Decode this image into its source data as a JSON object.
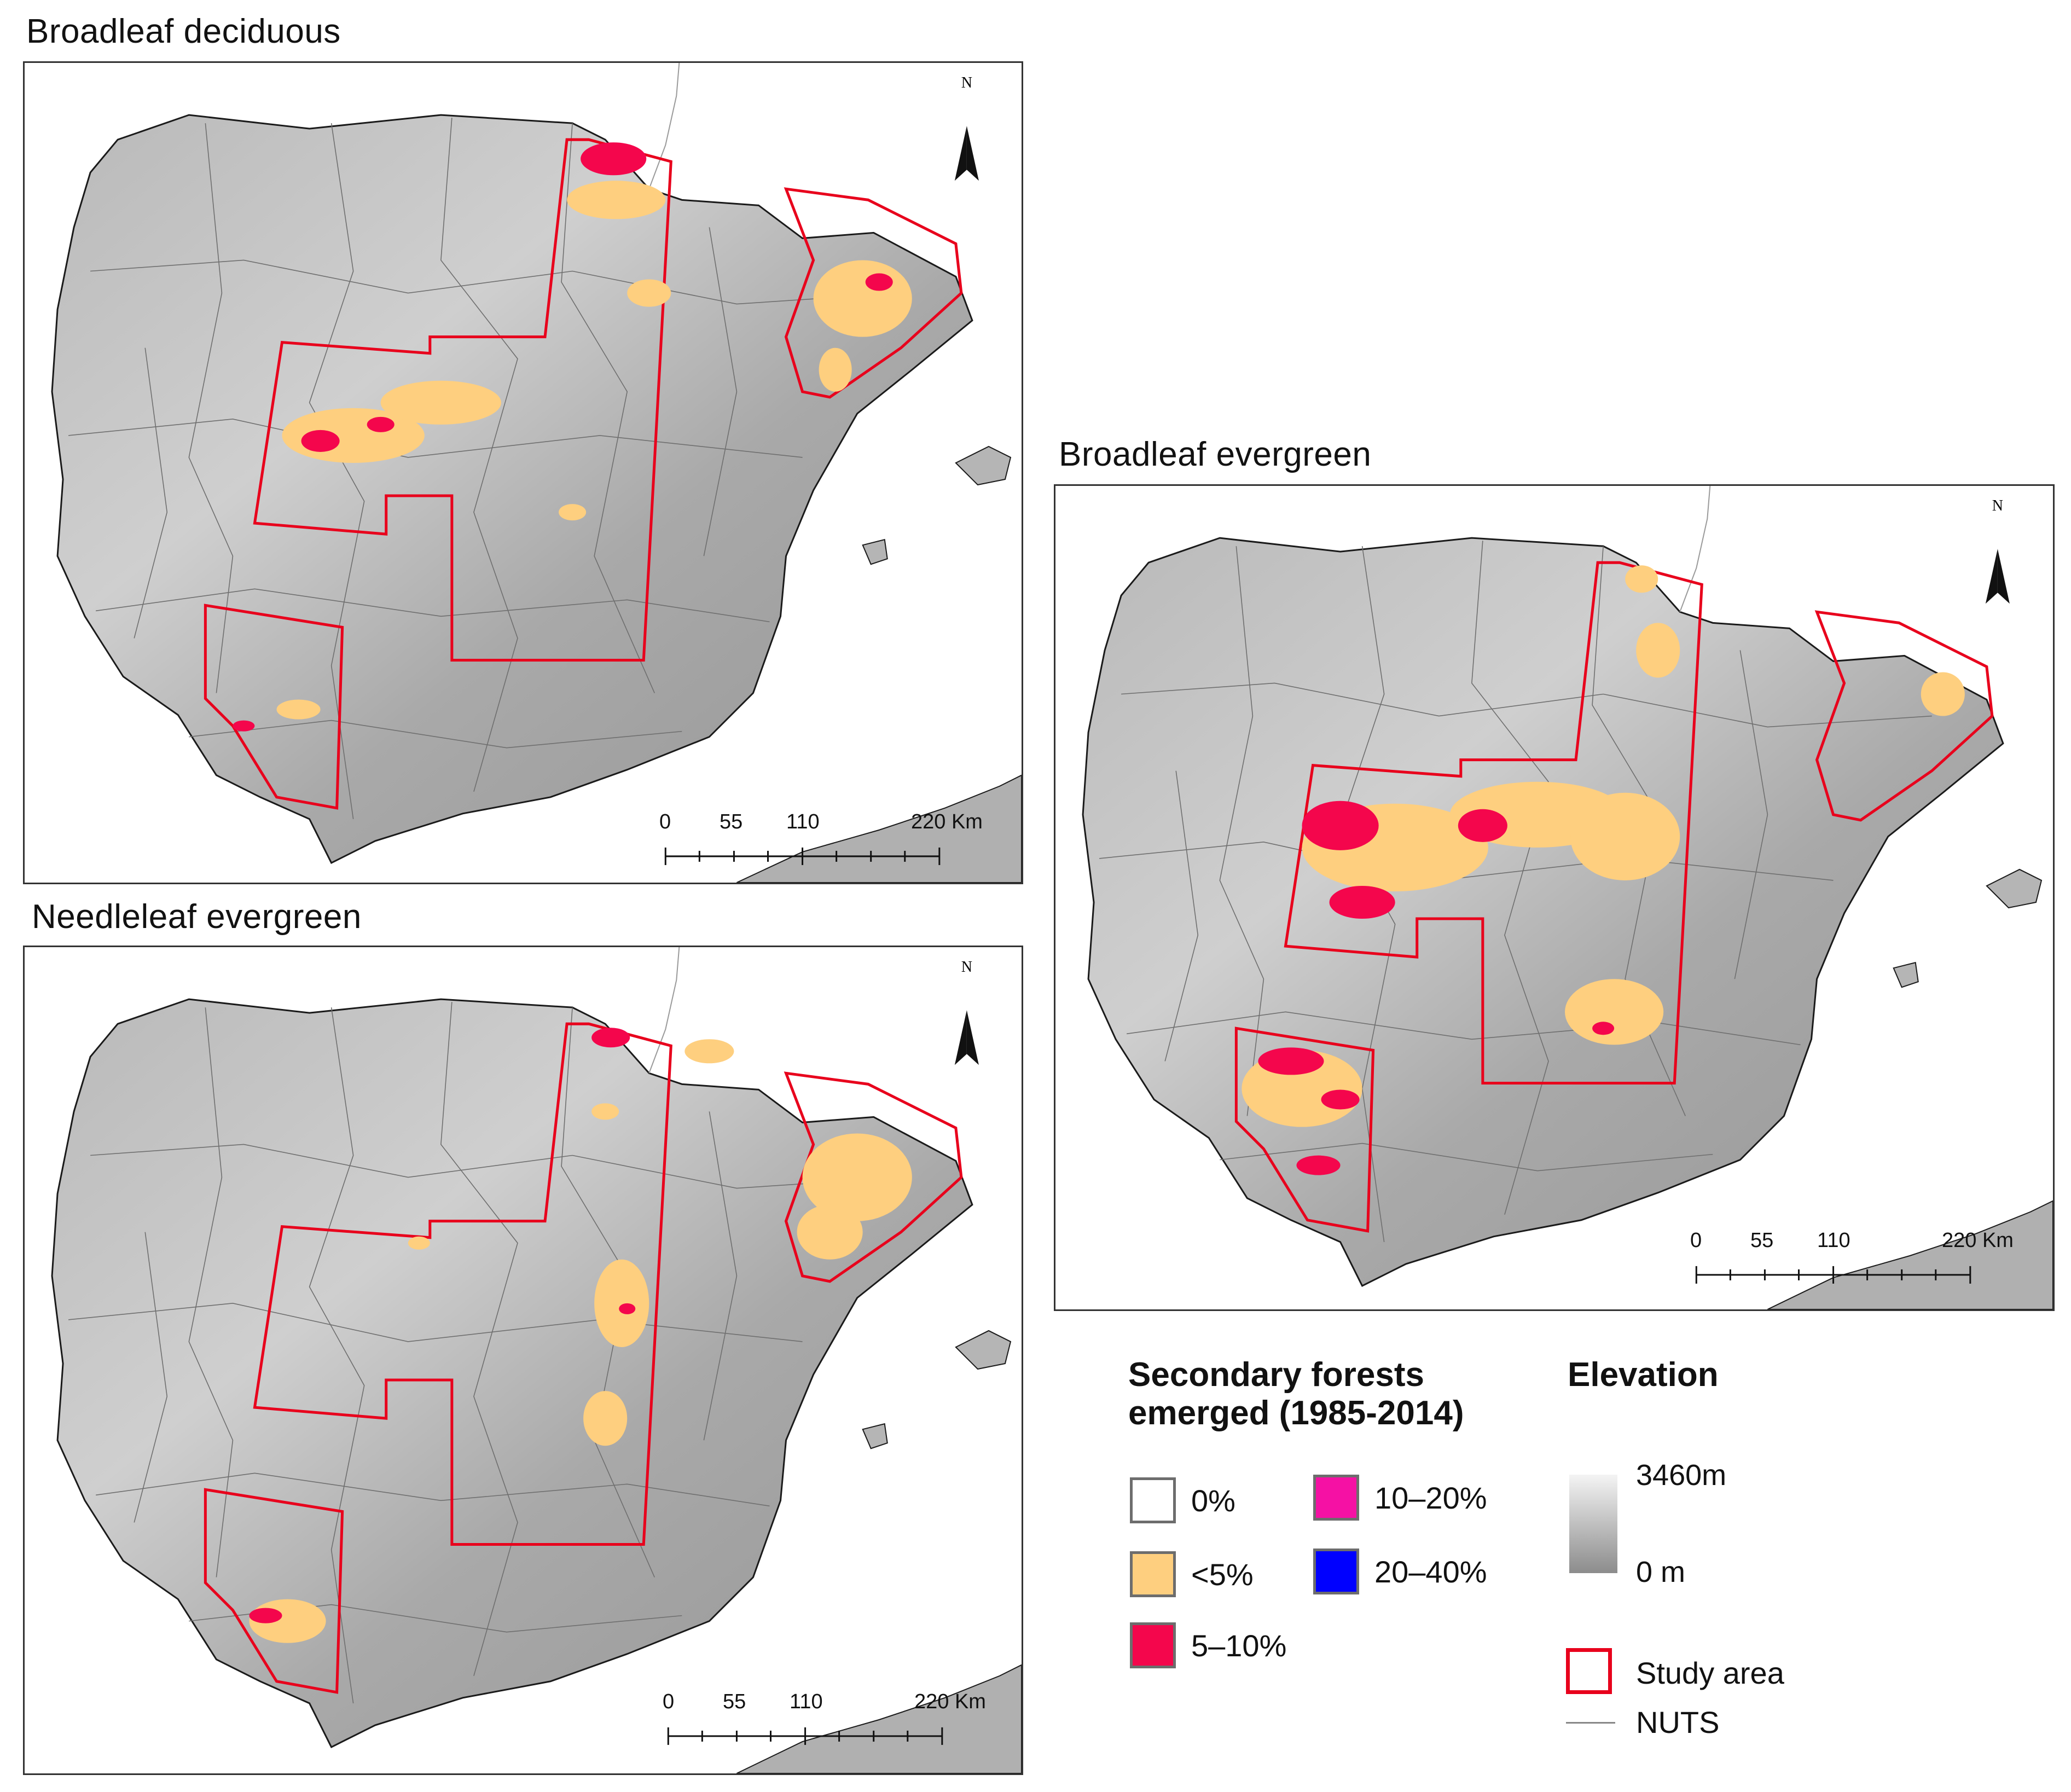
{
  "panels": {
    "broadleaf_deciduous": {
      "title": "Broadleaf deciduous"
    },
    "needleleaf_evergreen": {
      "title": "Needleleaf evergreen"
    },
    "broadleaf_evergreen": {
      "title": "Broadleaf evergreen"
    }
  },
  "north_arrow": {
    "label": "N"
  },
  "scale_bar": {
    "labels": [
      "0",
      "55",
      "110",
      "220 Km"
    ]
  },
  "legend": {
    "forest_heading_line1": "Secondary forests",
    "forest_heading_line2": "emerged (1985-2014)",
    "classes": [
      {
        "label": "0%",
        "color": "#ffffff"
      },
      {
        "label": "<5%",
        "color": "#fecf7f"
      },
      {
        "label": "5–10%",
        "color": "#f4064c"
      },
      {
        "label": "10–20%",
        "color": "#f511a4"
      },
      {
        "label": "20–40%",
        "color": "#0000ff"
      }
    ],
    "elevation_heading": "Elevation",
    "elevation_max": "3460m",
    "elevation_min": "0 m",
    "study_area_label": "Study area",
    "study_area_color": "#e8001c",
    "nuts_label": "NUTS"
  },
  "colors": {
    "land_light": "#c9c9c9",
    "land_dark": "#8f8f8f",
    "outline": "#1a1a1a",
    "study_area": "#e8001c",
    "low_class": "#fecf7f",
    "mid_class": "#f4064c"
  }
}
